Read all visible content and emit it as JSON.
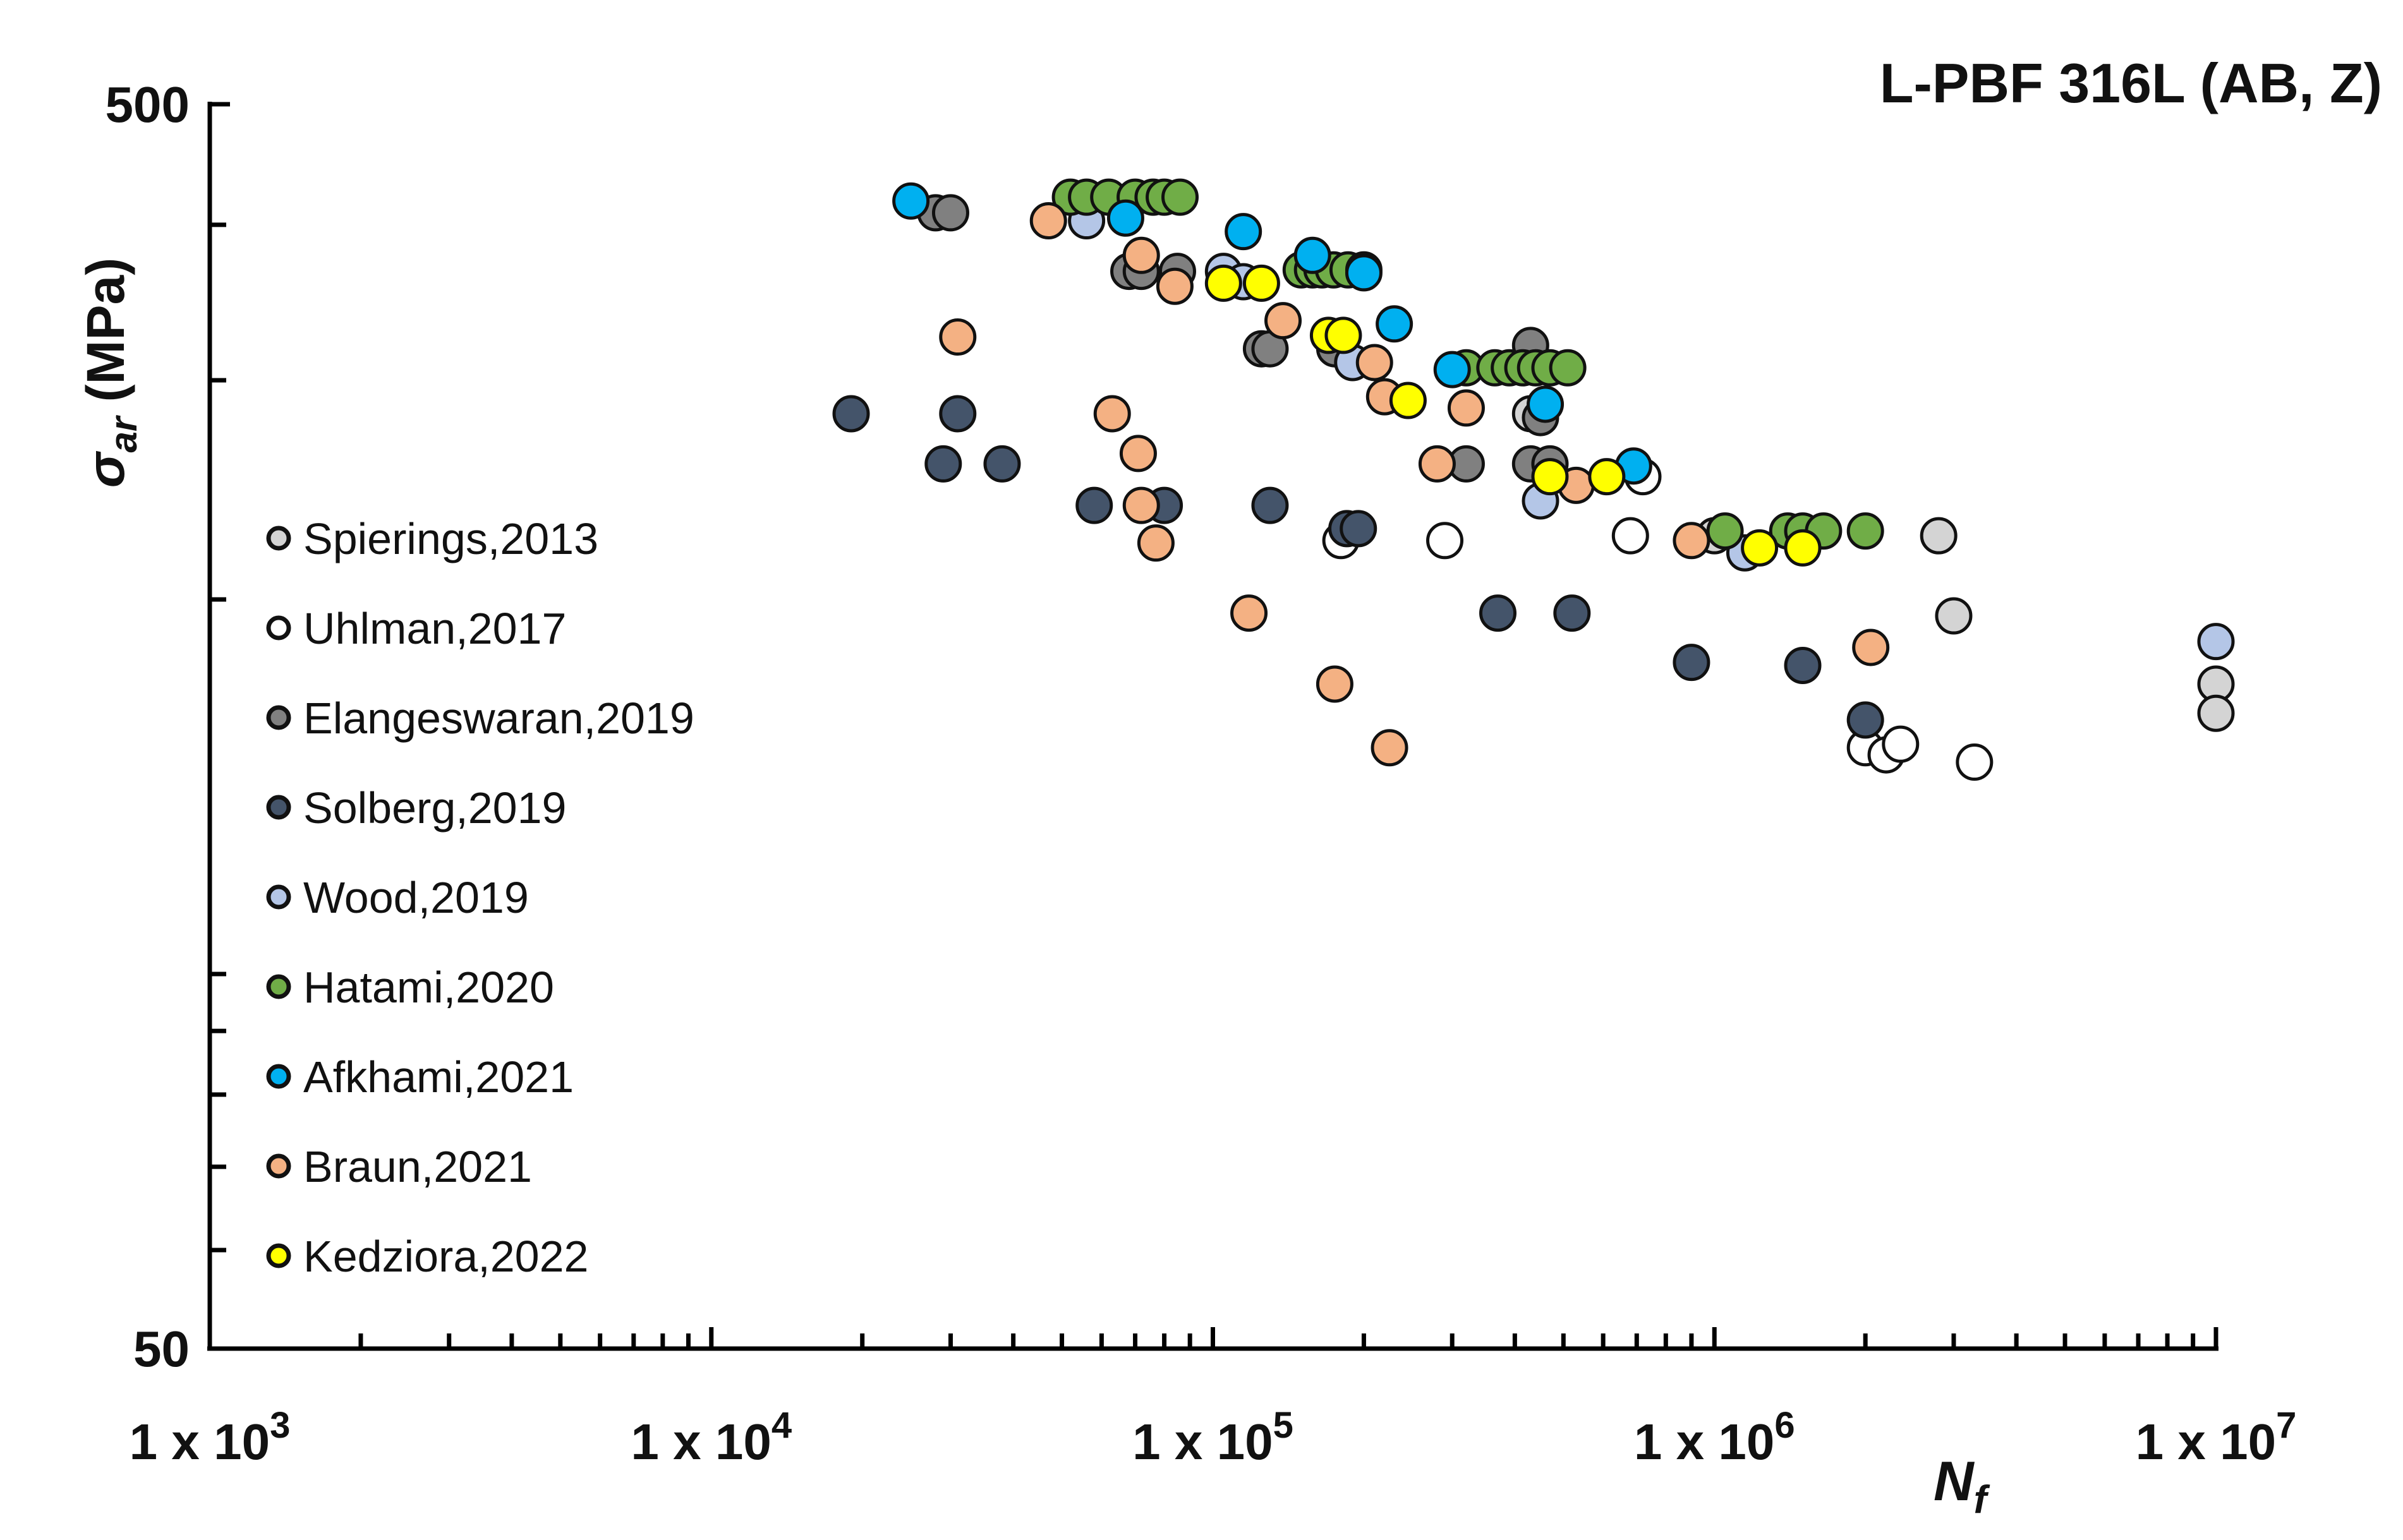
{
  "chart_data": {
    "type": "scatter",
    "title": "L-PBF 316L (AB, Z)",
    "xlabel": "N",
    "xlabel_sub": "f",
    "ylabel": "σ",
    "ylabel_sub": "ar",
    "ylabel_unit": "(MPa)",
    "xscale": "log",
    "yscale": "log",
    "xlim": [
      1000,
      10000000
    ],
    "ylim": [
      50,
      500
    ],
    "x_tick_labels": [
      {
        "mantissa": "1 x 10",
        "exp": "3",
        "value": 1000
      },
      {
        "mantissa": "1 x 10",
        "exp": "4",
        "value": 10000
      },
      {
        "mantissa": "1 x 10",
        "exp": "5",
        "value": 100000
      },
      {
        "mantissa": "1 x 10",
        "exp": "6",
        "value": 1000000
      },
      {
        "mantissa": "1 x 10",
        "exp": "7",
        "value": 10000000
      }
    ],
    "y_tick_labels": [
      {
        "label": "500",
        "value": 500
      },
      {
        "label": "50",
        "value": 50
      }
    ],
    "legend_position": "left",
    "series": [
      {
        "name": "Spierings,2013",
        "color": "#d4d4d4",
        "points": [
          [
            430000,
            282
          ],
          [
            1000000,
            225
          ],
          [
            2800000,
            225
          ],
          [
            3000000,
            194
          ],
          [
            10000000,
            171
          ],
          [
            10000000,
            162
          ]
        ]
      },
      {
        "name": "Uhlman,2017",
        "color": "#ffffff",
        "points": [
          [
            180000,
            223
          ],
          [
            290000,
            223
          ],
          [
            680000,
            225
          ],
          [
            720000,
            251
          ],
          [
            2000000,
            152
          ],
          [
            2200000,
            150
          ],
          [
            2350000,
            153
          ],
          [
            3300000,
            148
          ]
        ]
      },
      {
        "name": "Elangeswaran,2019",
        "color": "#808080",
        "points": [
          [
            28000,
            409
          ],
          [
            30000,
            409
          ],
          [
            68000,
            367
          ],
          [
            72000,
            367
          ],
          [
            85000,
            367
          ],
          [
            125000,
            318
          ],
          [
            130000,
            318
          ],
          [
            175000,
            318
          ],
          [
            320000,
            257
          ],
          [
            430000,
            257
          ],
          [
            470000,
            257
          ],
          [
            430000,
            320
          ],
          [
            450000,
            280
          ]
        ]
      },
      {
        "name": "Solberg,2019",
        "color": "#44546a",
        "points": [
          [
            19000,
            282
          ],
          [
            31000,
            282
          ],
          [
            29000,
            257
          ],
          [
            38000,
            257
          ],
          [
            58000,
            238
          ],
          [
            80000,
            238
          ],
          [
            130000,
            238
          ],
          [
            185000,
            228
          ],
          [
            195000,
            228
          ],
          [
            370000,
            195
          ],
          [
            520000,
            195
          ],
          [
            900000,
            178
          ],
          [
            1500000,
            177
          ],
          [
            2000000,
            160
          ]
        ]
      },
      {
        "name": "Wood,2019",
        "color": "#b4c6e7",
        "points": [
          [
            56000,
            403
          ],
          [
            105000,
            367
          ],
          [
            115000,
            360
          ],
          [
            190000,
            310
          ],
          [
            450000,
            240
          ],
          [
            1150000,
            218
          ],
          [
            10000000,
            185
          ]
        ]
      },
      {
        "name": "Hatami,2020",
        "color": "#70ad47",
        "points": [
          [
            52000,
            421
          ],
          [
            56000,
            421
          ],
          [
            62000,
            421
          ],
          [
            70000,
            421
          ],
          [
            76000,
            421
          ],
          [
            80000,
            421
          ],
          [
            86000,
            421
          ],
          [
            150000,
            368
          ],
          [
            158000,
            368
          ],
          [
            165000,
            368
          ],
          [
            174000,
            368
          ],
          [
            186000,
            368
          ],
          [
            200000,
            368
          ],
          [
            320000,
            307
          ],
          [
            365000,
            307
          ],
          [
            390000,
            307
          ],
          [
            415000,
            307
          ],
          [
            440000,
            307
          ],
          [
            470000,
            307
          ],
          [
            510000,
            307
          ],
          [
            1050000,
            227
          ],
          [
            1400000,
            227
          ],
          [
            1500000,
            227
          ],
          [
            1650000,
            227
          ],
          [
            2000000,
            227
          ]
        ]
      },
      {
        "name": "Afkhami,2021",
        "color": "#00b0f0",
        "points": [
          [
            25000,
            418
          ],
          [
            67000,
            405
          ],
          [
            115000,
            395
          ],
          [
            158000,
            378
          ],
          [
            200000,
            366
          ],
          [
            230000,
            333
          ],
          [
            300000,
            306
          ],
          [
            460000,
            287
          ],
          [
            690000,
            256
          ]
        ]
      },
      {
        "name": "Braun,2021",
        "color": "#f4b183",
        "points": [
          [
            47000,
            403
          ],
          [
            72000,
            378
          ],
          [
            84000,
            357
          ],
          [
            31000,
            325
          ],
          [
            63000,
            282
          ],
          [
            71000,
            262
          ],
          [
            72000,
            238
          ],
          [
            77000,
            222
          ],
          [
            118000,
            195
          ],
          [
            138000,
            335
          ],
          [
            210000,
            310
          ],
          [
            220000,
            291
          ],
          [
            280000,
            257
          ],
          [
            320000,
            285
          ],
          [
            530000,
            247
          ],
          [
            900000,
            223
          ],
          [
            2050000,
            183
          ],
          [
            175000,
            171
          ],
          [
            225000,
            152
          ]
        ]
      },
      {
        "name": "Kedziora,2022",
        "color": "#ffff00",
        "points": [
          [
            105000,
            359
          ],
          [
            125000,
            359
          ],
          [
            170000,
            326
          ],
          [
            182000,
            326
          ],
          [
            245000,
            289
          ],
          [
            470000,
            251
          ],
          [
            610000,
            251
          ],
          [
            1230000,
            220
          ],
          [
            1500000,
            220
          ]
        ]
      }
    ]
  }
}
